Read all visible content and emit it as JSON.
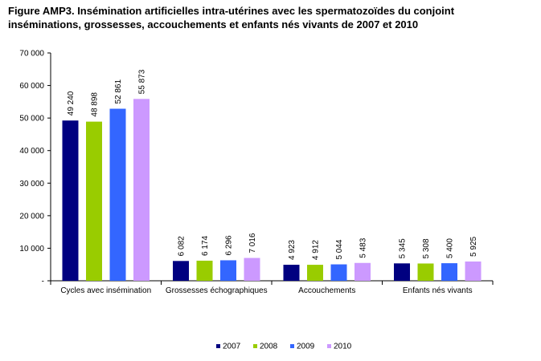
{
  "title": {
    "line1": "Figure AMP3. Insémination artificielles intra-utérines avec les spermatozoïdes du conjoint",
    "line2": "inséminations, grossesses, accouchements et enfants nés vivants de 2007 et 2010"
  },
  "chart_data": {
    "type": "bar",
    "categories": [
      "Cycles avec insémination",
      "Grossesses échographiques",
      "Accouchements",
      "Enfants nés vivants"
    ],
    "series": [
      {
        "name": "2007",
        "color": "#000080",
        "values": [
          49240,
          6082,
          4923,
          5345
        ],
        "labels": [
          "49 240",
          "6 082",
          "4 923",
          "5 345"
        ]
      },
      {
        "name": "2008",
        "color": "#99CC00",
        "values": [
          48898,
          6174,
          4912,
          5308
        ],
        "labels": [
          "48 898",
          "6 174",
          "4 912",
          "5 308"
        ]
      },
      {
        "name": "2009",
        "color": "#3366FF",
        "values": [
          52861,
          6296,
          5044,
          5400
        ],
        "labels": [
          "52 861",
          "6 296",
          "5 044",
          "5 400"
        ]
      },
      {
        "name": "2010",
        "color": "#CC99FF",
        "values": [
          55873,
          7016,
          5483,
          5925
        ],
        "labels": [
          "55 873",
          "7 016",
          "5 483",
          "5 925"
        ]
      }
    ],
    "ylim": [
      0,
      70000
    ],
    "yticks": [
      {
        "value": 0,
        "label": "-"
      },
      {
        "value": 10000,
        "label": "10 000"
      },
      {
        "value": 20000,
        "label": "20 000"
      },
      {
        "value": 30000,
        "label": "30 000"
      },
      {
        "value": 40000,
        "label": "40 000"
      },
      {
        "value": 50000,
        "label": "50 000"
      },
      {
        "value": 60000,
        "label": "60 000"
      },
      {
        "value": 70000,
        "label": "70 000"
      }
    ],
    "grid": false,
    "legend_position": "bottom"
  }
}
